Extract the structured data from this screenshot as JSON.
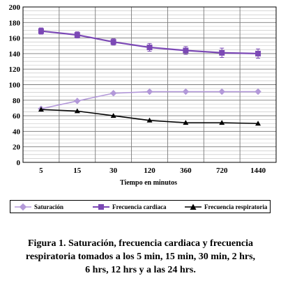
{
  "chart_data": {
    "type": "line",
    "categories": [
      "5",
      "15",
      "30",
      "120",
      "360",
      "720",
      "1440"
    ],
    "xlabel": "Tiempo en minutos",
    "ylabel": "",
    "ylim": [
      0,
      200
    ],
    "yticks": [
      "0",
      "20",
      "40",
      "60",
      "80",
      "100",
      "120",
      "140",
      "160",
      "180",
      "200"
    ],
    "grid": true,
    "legend_position": "bottom",
    "series": [
      {
        "name": "Saturación",
        "values": [
          69,
          79,
          89,
          91,
          91,
          91,
          91
        ],
        "marker": "diamond",
        "color": "#b399d9",
        "error": [
          0,
          0,
          0,
          0,
          0,
          0,
          0
        ]
      },
      {
        "name": "Frecuencia cardiaca",
        "values": [
          169,
          164,
          155,
          148,
          144,
          141,
          140
        ],
        "marker": "square",
        "color": "#7b48b5",
        "error": [
          4,
          4,
          4,
          5,
          5,
          6,
          6
        ]
      },
      {
        "name": "Frecuencia respiratoria",
        "values": [
          68,
          66,
          60,
          54,
          51,
          51,
          50
        ],
        "marker": "triangle",
        "color": "#000000",
        "error": [
          0,
          0,
          0,
          0,
          0,
          0,
          0
        ]
      }
    ]
  },
  "caption": {
    "lines": [
      "Figura 1. Saturación, frecuencia cardiaca y frecuencia",
      "respiratoria tomados a los 5 min, 15 min, 30 min, 2 hrs,",
      "6 hrs, 12 hrs y a las 24 hrs."
    ]
  }
}
